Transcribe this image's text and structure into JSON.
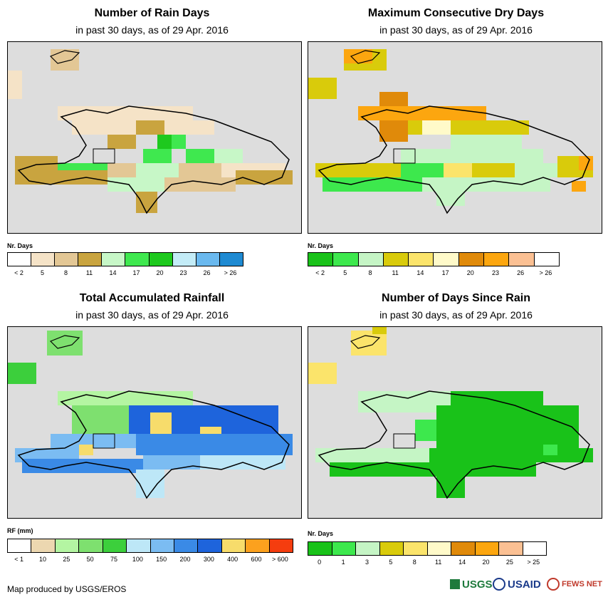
{
  "colors": {
    "map_bg": "#dddddd",
    "outline": "#000000"
  },
  "panels": [
    {
      "id": "rain_days",
      "title": "Number of Rain Days",
      "subtitle": "in past 30 days, as of 29 Apr. 2016",
      "legend_title": "Nr. Days",
      "legend_labels": [
        "< 2",
        "5",
        "8",
        "11",
        "14",
        "17",
        "20",
        "23",
        "26",
        "> 26"
      ],
      "legend_colors": [
        "#ffffff",
        "#f5e3c7",
        "#e3c795",
        "#c9a43f",
        "#c7f7c7",
        "#3fe84f",
        "#1ec91e",
        "#c3ecf7",
        "#6ab9ef",
        "#1e8ad2"
      ]
    },
    {
      "id": "dry_days",
      "title": "Maximum Consecutive Dry Days",
      "subtitle": "in past 30 days, as of 29 Apr. 2016",
      "legend_title": "Nr. Days",
      "legend_labels": [
        "< 2",
        "5",
        "8",
        "11",
        "14",
        "17",
        "20",
        "23",
        "26",
        "> 26"
      ],
      "legend_colors": [
        "#19c219",
        "#3de84d",
        "#c5f5c5",
        "#d9cb0b",
        "#fbe46b",
        "#fffac9",
        "#e08a0a",
        "#fca60f",
        "#fbc093",
        "#ffffff"
      ]
    },
    {
      "id": "rainfall",
      "title": "Total Accumulated Rainfall",
      "subtitle": "in past 30 days, as of 29 Apr. 2016",
      "legend_title": "RF (mm)",
      "legend_labels": [
        "< 1",
        "10",
        "25",
        "50",
        "75",
        "100",
        "150",
        "200",
        "300",
        "400",
        "600",
        "> 600"
      ],
      "legend_colors": [
        "#ffffff",
        "#ecd7b0",
        "#b4f5a2",
        "#7ee06f",
        "#3ccf3c",
        "#bde7f7",
        "#7bbcf2",
        "#3a8ae6",
        "#1e64dc",
        "#f7dc6b",
        "#fca11e",
        "#f53d0f"
      ]
    },
    {
      "id": "since_rain",
      "title": "Number of Days Since Rain",
      "subtitle": "in past 30 days, as of 29 Apr. 2016",
      "legend_title": "Nr. Days",
      "legend_labels": [
        "0",
        "1",
        "3",
        "5",
        "8",
        "11",
        "14",
        "20",
        "25",
        "> 25"
      ],
      "legend_colors": [
        "#19c219",
        "#3de84d",
        "#c5f5c5",
        "#d9cb0b",
        "#fbe46b",
        "#fffac9",
        "#e08a0a",
        "#fca60f",
        "#fbc093",
        "#ffffff"
      ]
    }
  ],
  "footer": "Map produced by USGS/EROS",
  "logos": {
    "usgs": "USGS",
    "usaid": "USAID",
    "fewsnet": "FEWS NET"
  }
}
